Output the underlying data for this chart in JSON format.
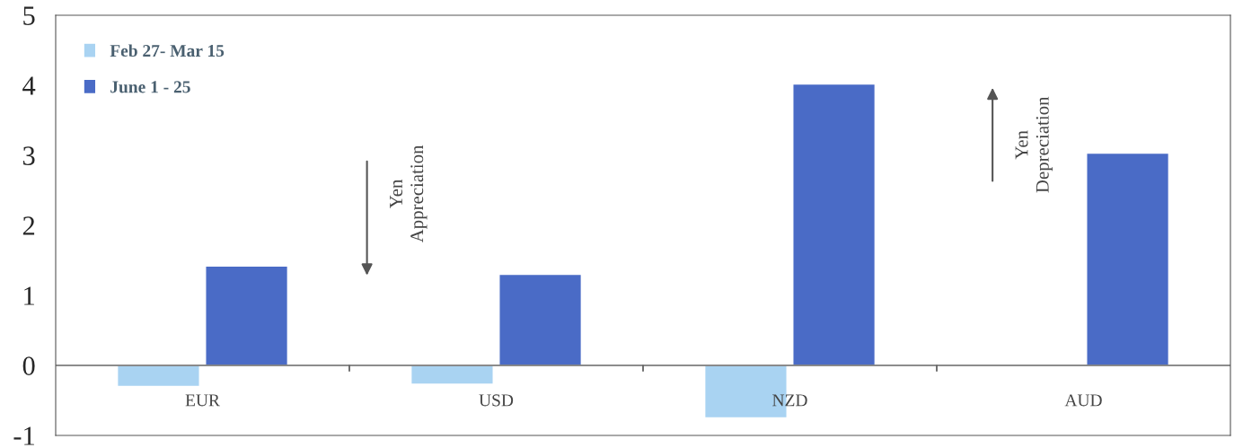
{
  "chart_data": {
    "type": "bar",
    "categories": [
      "EUR",
      "USD",
      "NZD",
      "AUD"
    ],
    "series": [
      {
        "name": "Feb 27- Mar 15",
        "color": "#a9d3f2",
        "values": [
          -0.3,
          -0.27,
          -0.75,
          null
        ]
      },
      {
        "name": "June 1 - 25",
        "color": "#4a6bc6",
        "values": [
          1.42,
          1.3,
          4.02,
          3.03
        ]
      }
    ],
    "ylim": [
      -1,
      5
    ],
    "yticks": [
      -1,
      0,
      1,
      2,
      3,
      4,
      5
    ],
    "annotations": [
      "Yen Appreciation",
      "Yen Depreciation"
    ],
    "grid": false,
    "legend": "top left"
  }
}
